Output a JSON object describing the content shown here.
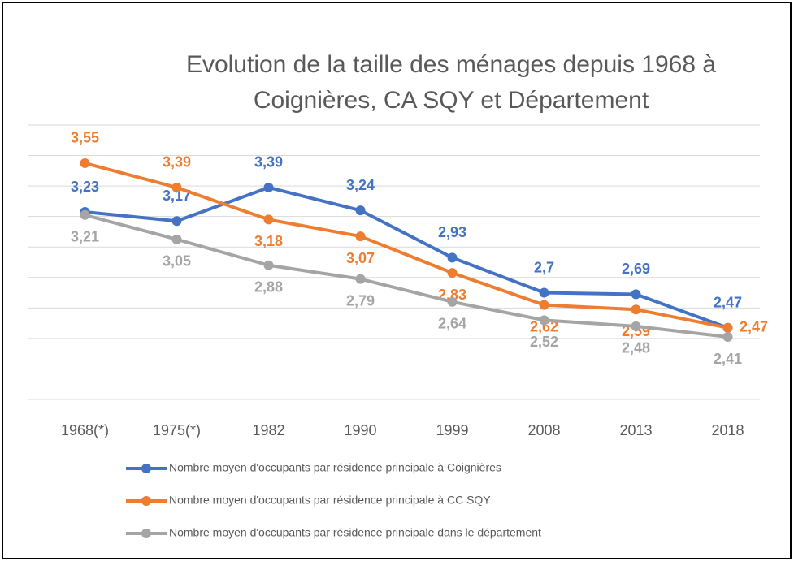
{
  "chart_data": {
    "type": "line",
    "title": "Evolution de la taille des ménages depuis 1968 à Coignières, CA SQY et Département",
    "categories": [
      "1968(*)",
      "1975(*)",
      "1982",
      "1990",
      "1999",
      "2008",
      "2013",
      "2018"
    ],
    "series": [
      {
        "name": "Nombre moyen d'occupants par résidence principale à Coignières",
        "color": "#4472c4",
        "values": [
          3.23,
          3.17,
          3.39,
          3.24,
          2.93,
          2.7,
          2.69,
          2.47
        ],
        "value_labels": [
          "3,23",
          "3,17",
          "3,39",
          "3,24",
          "2,93",
          "2,7",
          "2,69",
          "2,47"
        ]
      },
      {
        "name": "Nombre moyen d'occupants par résidence principale à CC SQY",
        "color": "#ed7d31",
        "values": [
          3.55,
          3.39,
          3.18,
          3.07,
          2.83,
          2.62,
          2.59,
          2.47
        ],
        "value_labels": [
          "3,55",
          "3,39",
          "3,18",
          "3,07",
          "2,83",
          "2,62",
          "2,59",
          "2,47"
        ]
      },
      {
        "name": "Nombre moyen d'occupants par résidence principale dans le département",
        "color": "#a5a5a5",
        "values": [
          3.21,
          3.05,
          2.88,
          2.79,
          2.64,
          2.52,
          2.48,
          2.41
        ],
        "value_labels": [
          "3,21",
          "3,05",
          "2,88",
          "2,79",
          "2,64",
          "2,52",
          "2,48",
          "2,41"
        ]
      }
    ],
    "ylim": [
      2.0,
      3.8
    ],
    "yticks": [
      2.0,
      2.2,
      2.4,
      2.6,
      2.8,
      3.0,
      3.2,
      3.4,
      3.6,
      3.8
    ],
    "grid": true
  }
}
